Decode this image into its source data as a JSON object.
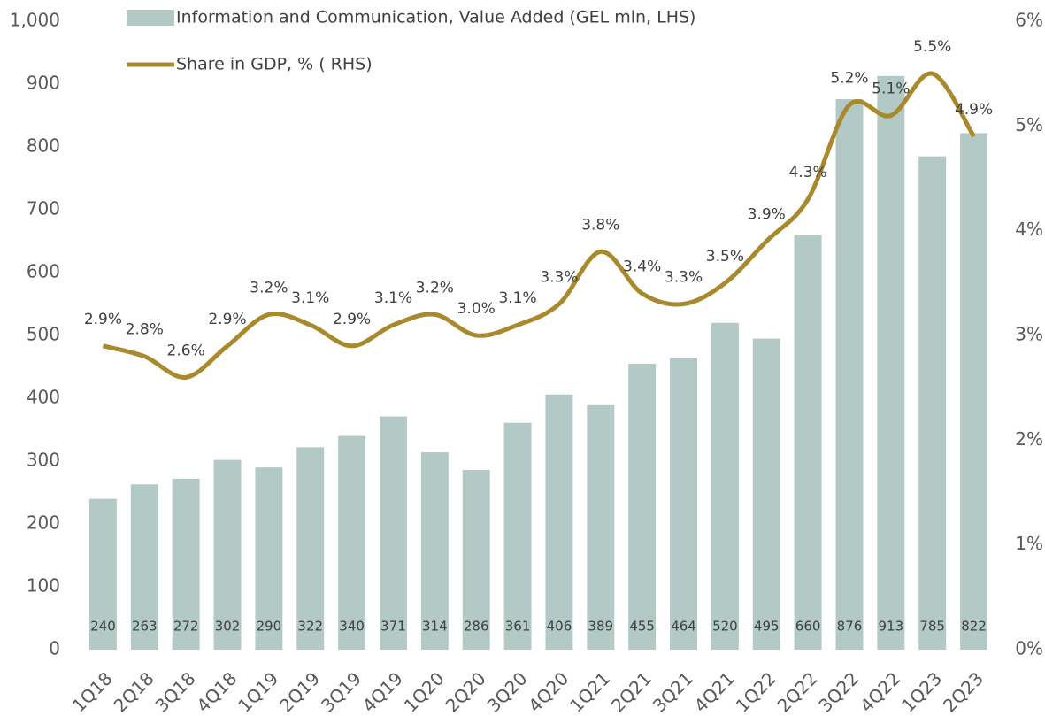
{
  "chart_data": {
    "type": "bar+line",
    "categories": [
      "1Q18",
      "2Q18",
      "3Q18",
      "4Q18",
      "1Q19",
      "2Q19",
      "3Q19",
      "4Q19",
      "1Q20",
      "2Q20",
      "3Q20",
      "4Q20",
      "1Q21",
      "2Q21",
      "3Q21",
      "4Q21",
      "1Q22",
      "2Q22",
      "3Q22",
      "4Q22",
      "1Q23",
      "2Q23"
    ],
    "series": [
      {
        "name": "Information and Communication, Value Added (GEL mln, LHS)",
        "type": "bar",
        "axis": "y",
        "color": "#b2c9c5",
        "values": [
          240,
          263,
          272,
          302,
          290,
          322,
          340,
          371,
          314,
          286,
          361,
          406,
          389,
          455,
          464,
          520,
          495,
          660,
          876,
          913,
          785,
          822
        ]
      },
      {
        "name": "Share in GDP, % ( RHS)",
        "type": "line",
        "axis": "y2",
        "color": "#a88a2c",
        "values": [
          2.9,
          2.8,
          2.6,
          2.9,
          3.2,
          3.1,
          2.9,
          3.1,
          3.2,
          3.0,
          3.1,
          3.3,
          3.8,
          3.4,
          3.3,
          3.5,
          3.9,
          4.3,
          5.2,
          5.1,
          5.5,
          4.9
        ],
        "value_labels": [
          "2.9%",
          "2.8%",
          "2.6%",
          "2.9%",
          "3.2%",
          "3.1%",
          "2.9%",
          "3.1%",
          "3.2%",
          "3.0%",
          "3.1%",
          "3.3%",
          "3.8%",
          "3.4%",
          "3.3%",
          "3.5%",
          "3.9%",
          "4.3%",
          "5.2%",
          "5.1%",
          "5.5%",
          "4.9%"
        ]
      }
    ],
    "ylim": [
      0,
      1000
    ],
    "yticks": [
      0,
      100,
      200,
      300,
      400,
      500,
      600,
      700,
      800,
      900,
      {
        "value": 1000,
        "label": "1,000"
      }
    ],
    "y2lim": [
      0,
      6
    ],
    "y2ticks": [
      {
        "value": 0,
        "label": "0%"
      },
      {
        "value": 1,
        "label": "1%"
      },
      {
        "value": 2,
        "label": "2%"
      },
      {
        "value": 3,
        "label": "3%"
      },
      {
        "value": 4,
        "label": "4%"
      },
      {
        "value": 5,
        "label": "5%"
      },
      {
        "value": 6,
        "label": "6%"
      }
    ]
  }
}
